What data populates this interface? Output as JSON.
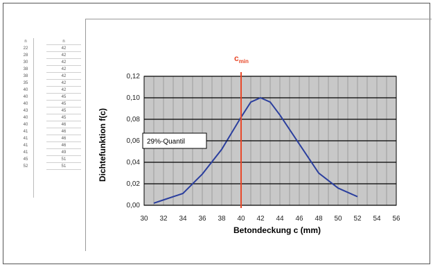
{
  "chart_data": {
    "type": "line",
    "xlabel": "Betondeckung c (mm)",
    "ylabel": "Dichtefunktion f(c)",
    "xlim": [
      30,
      56
    ],
    "ylim": [
      0,
      0.12
    ],
    "x_ticks": [
      30,
      32,
      34,
      36,
      38,
      40,
      42,
      44,
      46,
      48,
      50,
      52,
      54,
      56
    ],
    "y_ticks": [
      "0,00",
      "0,02",
      "0,04",
      "0,06",
      "0,08",
      "0,10",
      "0,12"
    ],
    "grid": true,
    "series": [
      {
        "name": "",
        "color": "#2b3f9e",
        "x": [
          31,
          32,
          34,
          36,
          38,
          40,
          41,
          42,
          43,
          44,
          46,
          48,
          50,
          52
        ],
        "y": [
          0.002,
          0.005,
          0.011,
          0.029,
          0.052,
          0.082,
          0.096,
          0.1,
          0.096,
          0.084,
          0.057,
          0.03,
          0.016,
          0.008
        ]
      }
    ],
    "annotations": [
      {
        "text": "29%-Quantil",
        "x": 39,
        "y": 0.06
      }
    ],
    "vline": {
      "x": 40,
      "color": "#e8492a",
      "label_main": "c",
      "label_sub": "min"
    }
  },
  "table_left": {
    "col1_header": "n",
    "col1": [
      "22",
      "28",
      "30",
      "38",
      "38",
      "35",
      "40",
      "40",
      "40",
      "43",
      "40",
      "40",
      "41",
      "41",
      "41",
      "41",
      "45",
      "52"
    ],
    "col2_header": "n",
    "col2": [
      "42",
      "42",
      "42",
      "42",
      "42",
      "42",
      "42",
      "45",
      "45",
      "45",
      "45",
      "46",
      "46",
      "46",
      "46",
      "49",
      "51",
      "51"
    ]
  },
  "colors": {
    "plot_background": "#c8c8c8",
    "grid_major": "#000000",
    "grid_minor": "#8a8a8a",
    "curve": "#2b3f9e",
    "cmin_line": "#e8492a"
  }
}
